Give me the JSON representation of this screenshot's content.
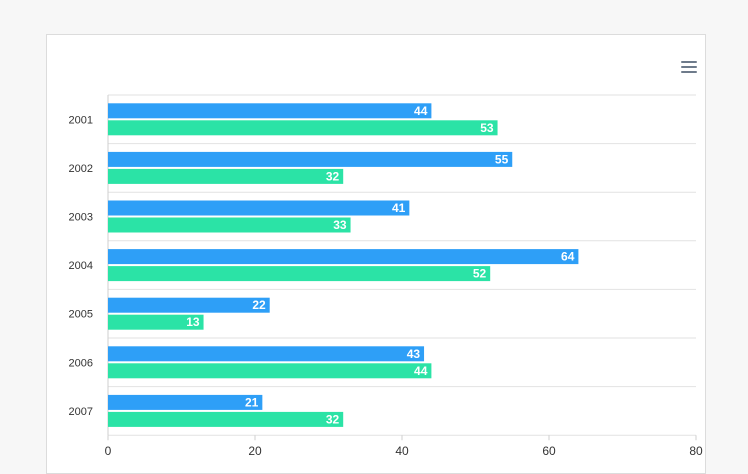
{
  "chart_data": {
    "type": "bar",
    "orientation": "horizontal",
    "categories": [
      "2001",
      "2002",
      "2003",
      "2004",
      "2005",
      "2006",
      "2007"
    ],
    "series": [
      {
        "values": [
          44,
          55,
          41,
          64,
          22,
          43,
          21
        ],
        "color": "#2e9ff7"
      },
      {
        "values": [
          53,
          32,
          33,
          52,
          13,
          44,
          32
        ],
        "color": "#2be3a6"
      }
    ],
    "xlim": [
      0,
      80
    ],
    "xticks": [
      0,
      20,
      40,
      60,
      80
    ],
    "data_labels": true,
    "grid": "horizontal-category-separators"
  },
  "toolbar": {
    "menu_icon": "hamburger-menu-icon"
  },
  "colors": {
    "background": "#f7f7f7",
    "card": "#ffffff",
    "text": "#333333"
  }
}
